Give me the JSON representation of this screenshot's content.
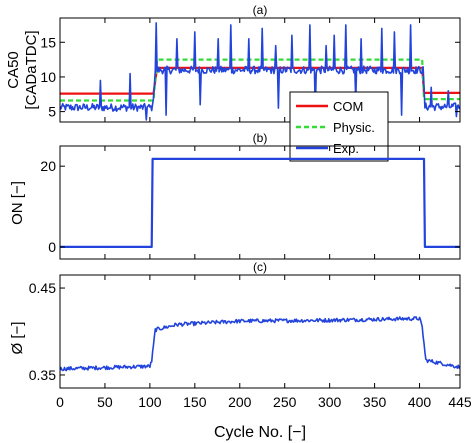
{
  "figure": {
    "xlabel": "Cycle No. [−]"
  },
  "chart_data": [
    {
      "type": "line",
      "title": "(a)",
      "ylabel_lines": [
        "CA50",
        "[CADaTDC]"
      ],
      "xlim": [
        0,
        445
      ],
      "ylim": [
        3.5,
        18.5
      ],
      "yticks": [
        5,
        10,
        15
      ],
      "xticks": [
        0,
        50,
        100,
        150,
        200,
        250,
        300,
        350,
        400,
        445
      ],
      "legend": {
        "placement": "bottom-right",
        "entries": [
          "COM",
          "Physic.",
          "Exp."
        ]
      },
      "series": [
        {
          "name": "COM",
          "color": "#ee1111",
          "style": "solid",
          "segments": [
            {
              "x": [
                0,
                104
              ],
              "y": [
                7.6,
                7.6
              ]
            },
            {
              "x": [
                104,
                108
              ],
              "y": [
                7.6,
                11.3
              ]
            },
            {
              "x": [
                108,
                403
              ],
              "y": [
                11.3,
                11.3
              ]
            },
            {
              "x": [
                403,
                405
              ],
              "y": [
                11.3,
                7.7
              ]
            },
            {
              "x": [
                405,
                445
              ],
              "y": [
                7.7,
                7.7
              ]
            }
          ]
        },
        {
          "name": "Physic.",
          "color": "#33dd33",
          "style": "dashed",
          "segments": [
            {
              "x": [
                0,
                104
              ],
              "y": [
                6.6,
                6.6
              ]
            },
            {
              "x": [
                104,
                108
              ],
              "y": [
                6.6,
                12.5
              ]
            },
            {
              "x": [
                108,
                403
              ],
              "y": [
                12.5,
                12.5
              ]
            },
            {
              "x": [
                403,
                405
              ],
              "y": [
                12.5,
                6.8
              ]
            },
            {
              "x": [
                405,
                445
              ],
              "y": [
                6.8,
                6.8
              ]
            }
          ]
        },
        {
          "name": "Exp.",
          "color": "#2244dd",
          "style": "solid",
          "base": [
            [
              0,
              5.6
            ],
            [
              103,
              5.6
            ],
            [
              106,
              11.0
            ],
            [
              404,
              11.0
            ],
            [
              406,
              5.7
            ],
            [
              445,
              5.7
            ]
          ],
          "noise": 0.55,
          "spikes": [
            [
              45,
              9.5
            ],
            [
              78,
              10.5
            ],
            [
              107,
              17.8
            ],
            [
              130,
              15.5
            ],
            [
              150,
              16.5
            ],
            [
              176,
              15.5
            ],
            [
              190,
              17.5
            ],
            [
              210,
              15.5
            ],
            [
              225,
              17.0
            ],
            [
              240,
              14.5
            ],
            [
              258,
              16.0
            ],
            [
              278,
              17.5
            ],
            [
              296,
              14.5
            ],
            [
              305,
              16.0
            ],
            [
              318,
              17.5
            ],
            [
              335,
              15.5
            ],
            [
              358,
              17.0
            ],
            [
              372,
              16.5
            ],
            [
              390,
              17.5
            ],
            [
              413,
              8.5
            ],
            [
              432,
              8.0
            ]
          ],
          "dips": [
            [
              96,
              3.8
            ],
            [
              118,
              4.5
            ],
            [
              156,
              6.0
            ],
            [
              243,
              5.5
            ],
            [
              284,
              5.0
            ],
            [
              329,
              6.5
            ],
            [
              380,
              4.5
            ],
            [
              441,
              4.3
            ]
          ]
        }
      ]
    },
    {
      "type": "line",
      "title": "(b)",
      "ylabel": "ON [−]",
      "xlim": [
        0,
        445
      ],
      "ylim": [
        -3,
        25
      ],
      "yticks": [
        0,
        20
      ],
      "xticks": [
        0,
        50,
        100,
        150,
        200,
        250,
        300,
        350,
        400,
        445
      ],
      "series": [
        {
          "name": "Exp.",
          "color": "#2244dd",
          "style": "solid",
          "x": [
            0,
            102,
            103,
            405,
            406,
            445
          ],
          "y": [
            0,
            0,
            21.8,
            21.8,
            0,
            0
          ]
        }
      ]
    },
    {
      "type": "line",
      "title": "(c)",
      "ylabel": "Ø [−]",
      "xlim": [
        0,
        445
      ],
      "ylim": [
        0.335,
        0.465
      ],
      "yticks": [
        0.35,
        0.45
      ],
      "ytick_labels": [
        "0.35",
        "0.45"
      ],
      "xticks": [
        0,
        50,
        100,
        150,
        200,
        250,
        300,
        350,
        400,
        445
      ],
      "series": [
        {
          "name": "Exp.",
          "color": "#2244dd",
          "style": "solid",
          "base": [
            [
              0,
              0.357
            ],
            [
              100,
              0.36
            ],
            [
              102,
              0.366
            ],
            [
              106,
              0.402
            ],
            [
              130,
              0.408
            ],
            [
              200,
              0.412
            ],
            [
              300,
              0.413
            ],
            [
              400,
              0.415
            ],
            [
              403,
              0.405
            ],
            [
              407,
              0.367
            ],
            [
              445,
              0.359
            ]
          ],
          "noise": 0.0022
        }
      ]
    }
  ]
}
